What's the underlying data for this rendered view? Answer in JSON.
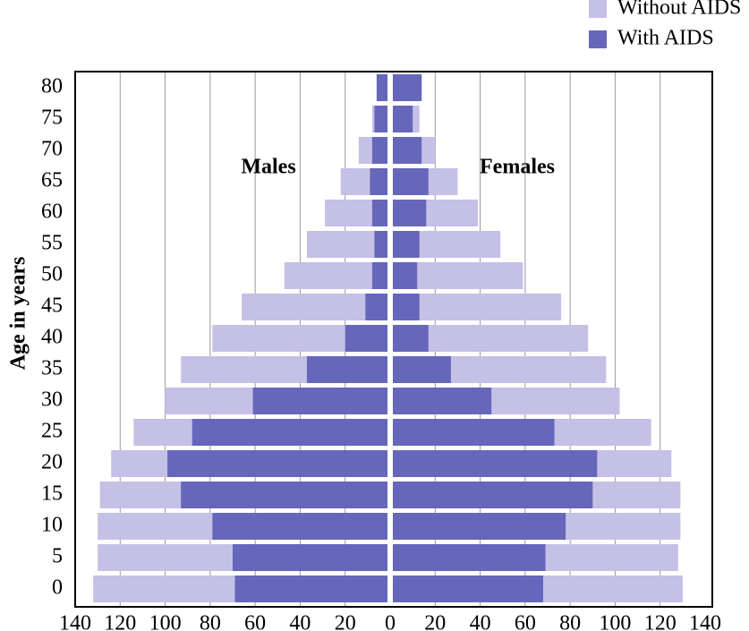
{
  "chart_data": {
    "type": "pyramid",
    "y_label": "Age in years",
    "left_label": "Males",
    "right_label": "Females",
    "categories": [
      "0",
      "5",
      "10",
      "15",
      "20",
      "25",
      "30",
      "35",
      "40",
      "45",
      "50",
      "55",
      "60",
      "65",
      "70",
      "75",
      "80"
    ],
    "series": [
      {
        "name": "Without AIDS",
        "color": "#c5c0e6",
        "males": [
          -132,
          -130,
          -130,
          -129,
          -124,
          -114,
          -100,
          -93,
          -79,
          -66,
          -47,
          -37,
          -29,
          -22,
          -14,
          -8,
          -6
        ],
        "females": [
          130,
          128,
          129,
          129,
          125,
          116,
          102,
          96,
          88,
          76,
          59,
          49,
          39,
          30,
          20,
          13,
          14
        ]
      },
      {
        "name": "With AIDS",
        "color": "#6666bb",
        "males": [
          -69,
          -70,
          -79,
          -93,
          -99,
          -88,
          -61,
          -37,
          -20,
          -11,
          -8,
          -7,
          -8,
          -9,
          -8,
          -7,
          -6
        ],
        "females": [
          68,
          69,
          78,
          90,
          92,
          73,
          45,
          27,
          17,
          13,
          12,
          13,
          16,
          17,
          14,
          10,
          14
        ]
      }
    ],
    "xlim": [
      -140,
      140
    ],
    "xticks": [
      {
        "value": -140,
        "label": "140"
      },
      {
        "value": -120,
        "label": "120"
      },
      {
        "value": -100,
        "label": "100"
      },
      {
        "value": -80,
        "label": "80"
      },
      {
        "value": -60,
        "label": "60"
      },
      {
        "value": -40,
        "label": "40"
      },
      {
        "value": -20,
        "label": "20"
      },
      0,
      20,
      40,
      60,
      80,
      100,
      120,
      140
    ],
    "grid": true
  }
}
